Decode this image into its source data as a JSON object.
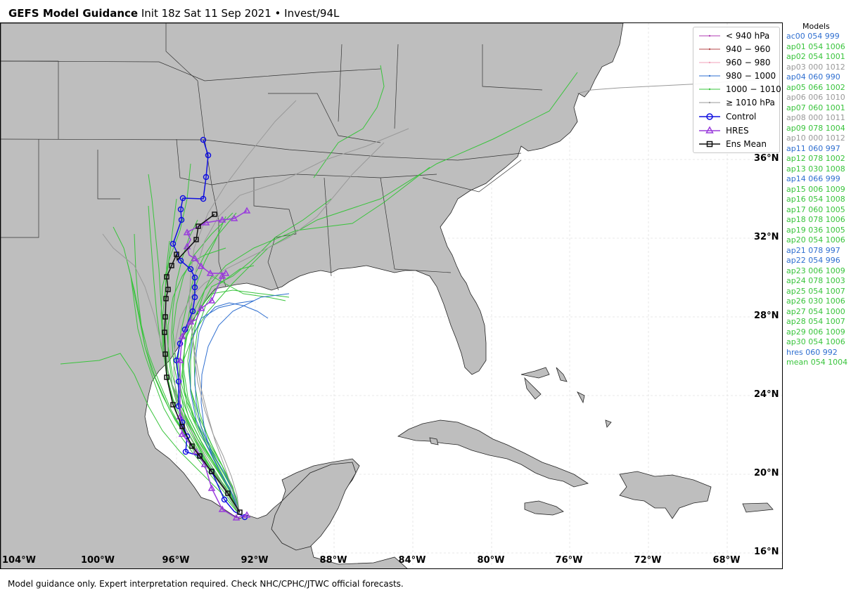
{
  "title": {
    "bold": "GEFS Model Guidance",
    "rest": "Init 18z Sat 11 Sep 2021 • Invest/94L"
  },
  "legend": [
    {
      "label": "< 940 hPa",
      "color": "#b23bb3",
      "kind": "line"
    },
    {
      "label": "940 − 960",
      "color": "#b5474a",
      "kind": "line"
    },
    {
      "label": "960 − 980",
      "color": "#f0a0b8",
      "kind": "line"
    },
    {
      "label": "980 − 1000",
      "color": "#2f6fd0",
      "kind": "line"
    },
    {
      "label": "1000 − 1010",
      "color": "#39c43c",
      "kind": "line"
    },
    {
      "label": "≥ 1010 hPa",
      "color": "#999999",
      "kind": "line"
    },
    {
      "label": "Control",
      "color": "#1010e0",
      "kind": "circle"
    },
    {
      "label": "HRES",
      "color": "#9a3ddc",
      "kind": "triangle"
    },
    {
      "label": "Ens Mean",
      "color": "#111111",
      "kind": "square"
    }
  ],
  "latitude_labels": [
    "36°N",
    "32°N",
    "28°N",
    "24°N",
    "20°N",
    "16°N"
  ],
  "longitude_labels": [
    "104°W",
    "100°W",
    "96°W",
    "92°W",
    "88°W",
    "84°W",
    "80°W",
    "76°W",
    "72°W",
    "68°W"
  ],
  "models_title": "Models",
  "models": [
    {
      "text": "ac00 054 999",
      "color": "#2f6fd0"
    },
    {
      "text": "ap01 054 1006",
      "color": "#39c43c"
    },
    {
      "text": "ap02 054 1001",
      "color": "#39c43c"
    },
    {
      "text": "ap03 000 1012",
      "color": "#999999"
    },
    {
      "text": "ap04 060 990",
      "color": "#2f6fd0"
    },
    {
      "text": "ap05 066 1002",
      "color": "#39c43c"
    },
    {
      "text": "ap06 006 1010",
      "color": "#999999"
    },
    {
      "text": "ap07 060 1001",
      "color": "#39c43c"
    },
    {
      "text": "ap08 000 1011",
      "color": "#999999"
    },
    {
      "text": "ap09 078 1004",
      "color": "#39c43c"
    },
    {
      "text": "ap10 000 1012",
      "color": "#999999"
    },
    {
      "text": "ap11 060 997",
      "color": "#2f6fd0"
    },
    {
      "text": "ap12 078 1002",
      "color": "#39c43c"
    },
    {
      "text": "ap13 030 1008",
      "color": "#39c43c"
    },
    {
      "text": "ap14 066 999",
      "color": "#2f6fd0"
    },
    {
      "text": "ap15 006 1009",
      "color": "#39c43c"
    },
    {
      "text": "ap16 054 1008",
      "color": "#39c43c"
    },
    {
      "text": "ap17 060 1005",
      "color": "#39c43c"
    },
    {
      "text": "ap18 078 1006",
      "color": "#39c43c"
    },
    {
      "text": "ap19 036 1005",
      "color": "#39c43c"
    },
    {
      "text": "ap20 054 1006",
      "color": "#39c43c"
    },
    {
      "text": "ap21 078 997",
      "color": "#2f6fd0"
    },
    {
      "text": "ap22 054 996",
      "color": "#2f6fd0"
    },
    {
      "text": "ap23 006 1009",
      "color": "#39c43c"
    },
    {
      "text": "ap24 078 1003",
      "color": "#39c43c"
    },
    {
      "text": "ap25 054 1007",
      "color": "#39c43c"
    },
    {
      "text": "ap26 030 1006",
      "color": "#39c43c"
    },
    {
      "text": "ap27 054 1000",
      "color": "#39c43c"
    },
    {
      "text": "ap28 054 1007",
      "color": "#39c43c"
    },
    {
      "text": "ap29 006 1009",
      "color": "#39c43c"
    },
    {
      "text": "ap30 054 1006",
      "color": "#39c43c"
    },
    {
      "text": "hres 060 992",
      "color": "#2f6fd0"
    },
    {
      "text": "mean 054 1004",
      "color": "#39c43c"
    }
  ],
  "footer": "Model guidance only. Expert interpretation required. Check NHC/CPHC/JTWC official forecasts.",
  "colors": {
    "land": "#bebebe",
    "water": "#ffffff",
    "border": "#444444",
    "control": "#1010e0",
    "hres": "#9a3ddc",
    "mean": "#111111"
  }
}
